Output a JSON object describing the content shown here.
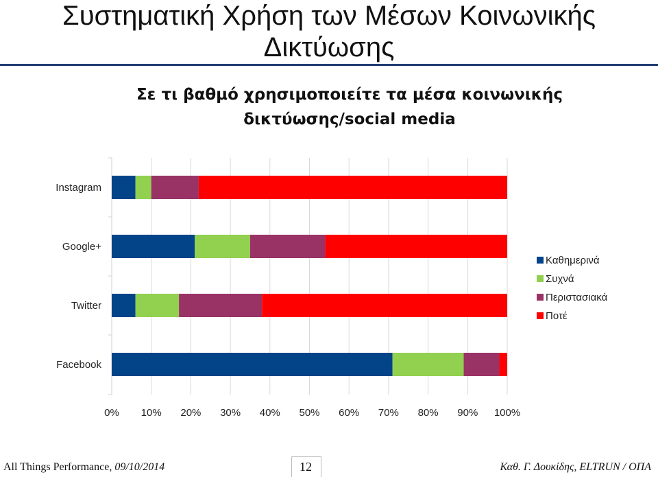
{
  "slide": {
    "title_line1": "Συστηματική Χρήση των Μέσων Κοινωνικής",
    "title_line2": "Δικτύωσης"
  },
  "chart_data": {
    "type": "bar",
    "orientation": "horizontal",
    "stacked": true,
    "percent_stacked": true,
    "title_line1": "Σε τι βαθμό χρησιμοποιείτε τα μέσα κοινωνικής",
    "title_line2": "δικτύωσης/social media",
    "categories": [
      "Instagram",
      "Google+",
      "Twitter",
      "Facebook"
    ],
    "series": [
      {
        "name": "Καθημερινά",
        "color": "#034488",
        "values": [
          6,
          21,
          6,
          71
        ]
      },
      {
        "name": "Συχνά",
        "color": "#92d050",
        "values": [
          4,
          14,
          11,
          18
        ]
      },
      {
        "name": "Περιστασιακά",
        "color": "#993366",
        "values": [
          12,
          19,
          21,
          9
        ]
      },
      {
        "name": "Ποτέ",
        "color": "#ff0000",
        "values": [
          78,
          46,
          62,
          2
        ]
      }
    ],
    "x_ticks": [
      "0%",
      "10%",
      "20%",
      "30%",
      "40%",
      "50%",
      "60%",
      "70%",
      "80%",
      "90%",
      "100%"
    ],
    "xlim": [
      0,
      100
    ],
    "grid": true,
    "legend_position": "right"
  },
  "footer": {
    "left_text": "All Things Performance, ",
    "left_date": "09/10/2014",
    "page_number": "12",
    "right_text": "Καθ. Γ. Δουκίδης, ELTRUN / ΟΠΑ"
  }
}
